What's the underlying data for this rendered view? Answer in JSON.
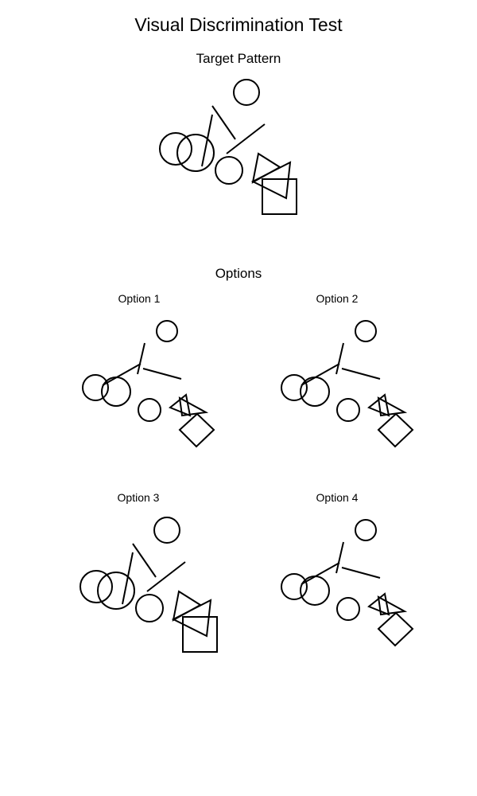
{
  "title": "Visual Discrimination Test",
  "target": {
    "title": "Target Pattern"
  },
  "options": {
    "title": "Options",
    "items": [
      {
        "label": "Option 1"
      },
      {
        "label": "Option 2"
      },
      {
        "label": "Option 3"
      },
      {
        "label": "Option 4"
      }
    ]
  }
}
